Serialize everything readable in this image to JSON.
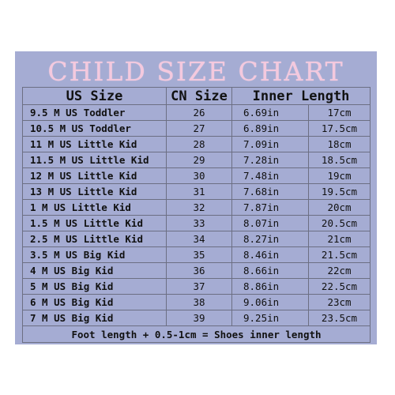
{
  "title": "CHILD SIZE CHART",
  "headers": {
    "us_size": "US Size",
    "cn_size": "CN Size",
    "inner_length": "Inner Length"
  },
  "rows": [
    {
      "us": "9.5 M US Toddler",
      "cn": "26",
      "inch": "6.69in",
      "cm": "17cm"
    },
    {
      "us": "10.5 M US Toddler",
      "cn": "27",
      "inch": "6.89in",
      "cm": "17.5cm"
    },
    {
      "us": "11 M US Little Kid",
      "cn": "28",
      "inch": "7.09in",
      "cm": "18cm"
    },
    {
      "us": "11.5 M US Little Kid",
      "cn": "29",
      "inch": "7.28in",
      "cm": "18.5cm"
    },
    {
      "us": "12 M US Little Kid",
      "cn": "30",
      "inch": "7.48in",
      "cm": "19cm"
    },
    {
      "us": "13 M US Little Kid",
      "cn": "31",
      "inch": "7.68in",
      "cm": "19.5cm"
    },
    {
      "us": "1 M US Little Kid",
      "cn": "32",
      "inch": "7.87in",
      "cm": "20cm"
    },
    {
      "us": "1.5 M US Little Kid",
      "cn": "33",
      "inch": "8.07in",
      "cm": "20.5cm"
    },
    {
      "us": "2.5 M US Little Kid",
      "cn": "34",
      "inch": "8.27in",
      "cm": "21cm"
    },
    {
      "us": "3.5 M US Big Kid",
      "cn": "35",
      "inch": "8.46in",
      "cm": "21.5cm"
    },
    {
      "us": "4 M US Big Kid",
      "cn": "36",
      "inch": "8.66in",
      "cm": "22cm"
    },
    {
      "us": "5 M US Big Kid",
      "cn": "37",
      "inch": "8.86in",
      "cm": "22.5cm"
    },
    {
      "us": "6 M US Big Kid",
      "cn": "38",
      "inch": "9.06in",
      "cm": "23cm"
    },
    {
      "us": "7 M US Big Kid",
      "cn": "39",
      "inch": "9.25in",
      "cm": "23.5cm"
    }
  ],
  "footer": "Foot length + 0.5-1cm = Shoes inner length",
  "colors": {
    "panel": "#a5acd3",
    "title": "#f4c9de",
    "table_bg": "#ffffff",
    "border": "#6c6f83"
  }
}
